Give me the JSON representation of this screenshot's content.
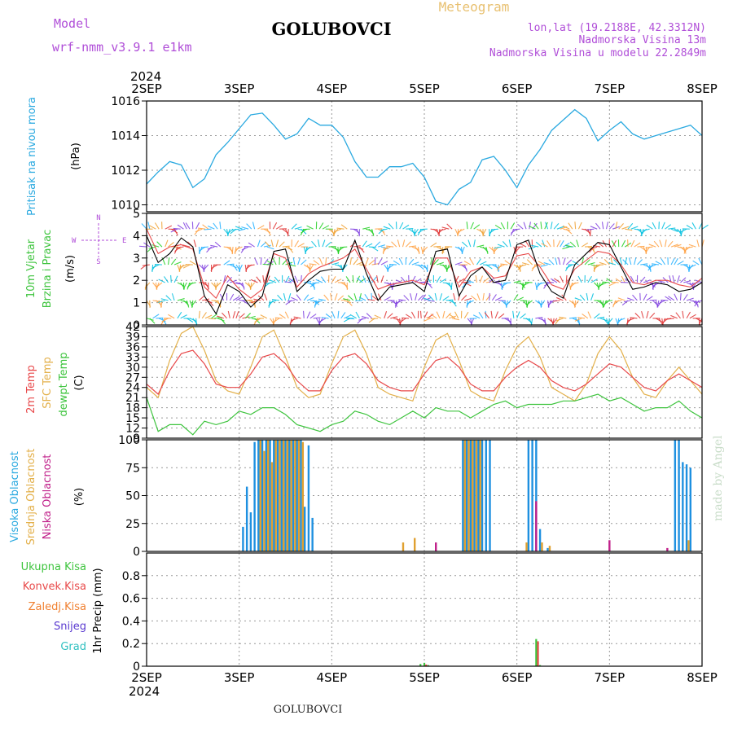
{
  "header": {
    "model_label": "Model",
    "model_name": "wrf-nmm_v3.9.1  e1km",
    "station": "GOLUBOVCI",
    "meteogram": "Meteogram",
    "lonlat": "lon,lat (19.2188E, 42.3312N)",
    "altitude": "Nadmorska Visina 13m",
    "model_altitude": "Nadmorska Visina u modelu 22.2849m",
    "footer_station": "GOLUBOVCI",
    "credit": "made by Angel"
  },
  "time_axis": {
    "year": "2024",
    "days": [
      "2SEP",
      "3SEP",
      "4SEP",
      "5SEP",
      "6SEP",
      "7SEP",
      "8SEP"
    ],
    "hours_total": 144
  },
  "colors": {
    "pressure": "#2aa9e0",
    "wind_speed": "#000000",
    "wind_gust": "#e84a4a",
    "temp_2m": "#e8484a",
    "temp_sfc": "#e3b04a",
    "dewpoint": "#3ec43e",
    "cloud_high": "#1e90e0",
    "cloud_mid": "#e0a030",
    "cloud_low": "#c0208a",
    "precip_total": "#3ec43e",
    "precip_conv": "#e84a4a",
    "precip_frz": "#f08030",
    "snow": "#5a3ad0",
    "hail": "#30c0c0",
    "label_purple": "#b04ed8",
    "label_gold": "#e8c070",
    "credit": "#c8dcc8"
  },
  "panels": {
    "pressure": {
      "title": "Pritisak na nivou mora",
      "unit": "(hPa)",
      "yticks": [
        "1010",
        "1012",
        "1014",
        "1016"
      ]
    },
    "wind": {
      "title1": "10m Vjetar",
      "title2": "Brzina i Pravac",
      "unit": "(m/s)",
      "yticks": [
        "0",
        "1",
        "2",
        "3",
        "4",
        "5"
      ],
      "compass": {
        "n": "N",
        "s": "S",
        "w": "W",
        "e": "E"
      }
    },
    "temp": {
      "title1": "2m Temp",
      "title2": "SFC Temp",
      "title3": "dewpt Temp",
      "unit": "(C)",
      "yticks": [
        "9",
        "12",
        "15",
        "18",
        "21",
        "24",
        "27",
        "30",
        "33",
        "36",
        "39",
        "42"
      ]
    },
    "cloud": {
      "title1": "Visoka Oblacnost",
      "title2": "Srednja Oblacnost",
      "title3": "Niska Oblacnost",
      "unit": "(%)",
      "yticks": [
        "0",
        "25",
        "50",
        "75",
        "100"
      ]
    },
    "precip": {
      "legend": [
        "Ukupna Kisa",
        "Konvek.Kisa",
        "Zaledj.Kisa",
        "Snijeg",
        "Grad"
      ],
      "ylabel": "1hr Precip (mm)",
      "yticks": [
        "0",
        "0.2",
        "0.4",
        "0.6",
        "0.8"
      ]
    }
  },
  "chart_data": [
    {
      "type": "line",
      "name": "pressure",
      "ylim": [
        1009.6,
        1016
      ],
      "x_hours": [
        0,
        3,
        6,
        9,
        12,
        15,
        18,
        21,
        24,
        27,
        30,
        33,
        36,
        39,
        42,
        45,
        48,
        51,
        54,
        57,
        60,
        63,
        66,
        69,
        72,
        75,
        78,
        81,
        84,
        87,
        90,
        93,
        96,
        99,
        102,
        105,
        108,
        111,
        114,
        117,
        120,
        123,
        126,
        129,
        132,
        135,
        138,
        141,
        144
      ],
      "values": [
        1011.2,
        1011.9,
        1012.5,
        1012.3,
        1011.0,
        1011.5,
        1012.9,
        1013.6,
        1014.4,
        1015.2,
        1015.3,
        1014.6,
        1013.8,
        1014.1,
        1015.0,
        1014.6,
        1014.6,
        1013.9,
        1012.5,
        1011.6,
        1011.6,
        1012.2,
        1012.2,
        1012.4,
        1011.6,
        1010.2,
        1010.0,
        1010.9,
        1011.3,
        1012.6,
        1012.8,
        1012.0,
        1011.0,
        1012.3,
        1013.2,
        1014.3,
        1014.9,
        1015.5,
        1015.0,
        1013.7,
        1014.3,
        1014.8,
        1014.1,
        1013.8,
        1014.0,
        1014.2,
        1014.4,
        1014.6,
        1014.0
      ]
    },
    {
      "type": "line",
      "name": "wind",
      "ylim": [
        0,
        5
      ],
      "x_hours": [
        0,
        3,
        6,
        9,
        12,
        15,
        18,
        21,
        24,
        27,
        30,
        33,
        36,
        39,
        42,
        45,
        48,
        51,
        54,
        57,
        60,
        63,
        66,
        69,
        72,
        75,
        78,
        81,
        84,
        87,
        90,
        93,
        96,
        99,
        102,
        105,
        108,
        111,
        114,
        117,
        120,
        123,
        126,
        129,
        132,
        135,
        138,
        141,
        144
      ],
      "series": [
        {
          "values": [
            4.0,
            2.8,
            3.2,
            3.9,
            3.5,
            1.3,
            0.5,
            1.8,
            1.5,
            0.8,
            1.3,
            3.3,
            3.4,
            1.5,
            2.0,
            2.4,
            2.5,
            2.5,
            3.8,
            2.3,
            1.1,
            1.7,
            1.8,
            1.9,
            1.5,
            3.3,
            3.4,
            1.3,
            2.2,
            2.6,
            1.9,
            2.0,
            3.6,
            3.8,
            2.3,
            1.5,
            1.2,
            2.7,
            3.2,
            3.7,
            3.6,
            2.6,
            1.6,
            1.7,
            1.9,
            1.8,
            1.5,
            1.6,
            1.9
          ]
        },
        {
          "values": [
            4.3,
            3.2,
            3.5,
            3.6,
            3.4,
            1.7,
            1.2,
            2.2,
            1.6,
            1.2,
            1.6,
            3.2,
            3.0,
            1.7,
            2.3,
            2.6,
            2.8,
            3.0,
            3.4,
            2.5,
            1.6,
            1.8,
            1.9,
            2.0,
            1.8,
            3.0,
            3.0,
            1.7,
            2.4,
            2.6,
            2.1,
            2.2,
            3.1,
            3.2,
            2.6,
            1.8,
            1.6,
            2.5,
            2.9,
            3.3,
            3.2,
            2.7,
            1.9,
            1.8,
            2.0,
            2.0,
            1.8,
            1.7,
            2.1
          ]
        }
      ]
    },
    {
      "type": "line",
      "name": "temperature",
      "ylim": [
        9,
        42
      ],
      "x_hours": [
        0,
        3,
        6,
        9,
        12,
        15,
        18,
        21,
        24,
        27,
        30,
        33,
        36,
        39,
        42,
        45,
        48,
        51,
        54,
        57,
        60,
        63,
        66,
        69,
        72,
        75,
        78,
        81,
        84,
        87,
        90,
        93,
        96,
        99,
        102,
        105,
        108,
        111,
        114,
        117,
        120,
        123,
        126,
        129,
        132,
        135,
        138,
        141,
        144
      ],
      "series": [
        {
          "values": [
            25,
            22,
            29,
            34,
            35,
            31,
            25,
            24,
            24,
            28,
            33,
            34,
            31,
            26,
            23,
            23,
            29,
            33,
            34,
            31,
            26,
            24,
            23,
            23,
            28,
            32,
            33,
            30,
            25,
            23,
            23,
            27,
            30,
            32,
            30,
            26,
            24,
            23,
            25,
            28,
            31,
            30,
            27,
            24,
            23,
            26,
            28,
            26,
            24
          ]
        },
        {
          "values": [
            24,
            21,
            32,
            40,
            42,
            35,
            26,
            23,
            22,
            30,
            39,
            41,
            33,
            24,
            21,
            22,
            31,
            39,
            41,
            34,
            24,
            22,
            21,
            20,
            30,
            38,
            40,
            32,
            23,
            21,
            20,
            29,
            36,
            39,
            33,
            24,
            22,
            20,
            25,
            34,
            39,
            35,
            27,
            22,
            21,
            26,
            30,
            26,
            22
          ]
        },
        {
          "values": [
            21,
            11,
            13,
            13,
            10,
            14,
            13,
            14,
            17,
            16,
            18,
            18,
            16,
            13,
            12,
            11,
            13,
            14,
            17,
            16,
            14,
            13,
            15,
            17,
            15,
            18,
            17,
            17,
            15,
            17,
            19,
            20,
            18,
            19,
            19,
            19,
            20,
            20,
            21,
            22,
            20,
            21,
            19,
            17,
            18,
            18,
            20,
            17,
            15
          ]
        }
      ]
    },
    {
      "type": "bar",
      "name": "cloud",
      "ylim": [
        0,
        100
      ],
      "series": [
        {
          "name": "Visoka Oblacnost",
          "bars": [
            [
              25,
              22
            ],
            [
              26,
              58
            ],
            [
              27,
              35
            ],
            [
              28,
              98
            ],
            [
              29,
              100
            ],
            [
              30,
              100
            ],
            [
              31,
              100
            ],
            [
              32,
              100
            ],
            [
              33,
              100
            ],
            [
              34,
              100
            ],
            [
              35,
              100
            ],
            [
              36,
              100
            ],
            [
              37,
              100
            ],
            [
              38,
              100
            ],
            [
              39,
              100
            ],
            [
              40,
              100
            ],
            [
              41,
              40
            ],
            [
              42,
              95
            ],
            [
              43,
              30
            ],
            [
              82,
              100
            ],
            [
              83,
              100
            ],
            [
              84,
              100
            ],
            [
              85,
              100
            ],
            [
              86,
              100
            ],
            [
              87,
              100
            ],
            [
              88,
              100
            ],
            [
              89,
              100
            ],
            [
              99,
              100
            ],
            [
              100,
              100
            ],
            [
              101,
              100
            ],
            [
              102,
              20
            ],
            [
              104,
              3
            ],
            [
              137,
              100
            ],
            [
              138,
              100
            ],
            [
              139,
              80
            ],
            [
              140,
              78
            ],
            [
              141,
              75
            ]
          ]
        },
        {
          "name": "Srednja Oblacnost",
          "bars": [
            [
              29,
              100
            ],
            [
              30,
              90
            ],
            [
              31,
              100
            ],
            [
              32,
              80
            ],
            [
              33,
              100
            ],
            [
              34,
              100
            ],
            [
              35,
              100
            ],
            [
              36,
              100
            ],
            [
              37,
              100
            ],
            [
              38,
              100
            ],
            [
              39,
              100
            ],
            [
              40,
              98
            ],
            [
              66,
              8
            ],
            [
              69,
              12
            ],
            [
              82,
              100
            ],
            [
              83,
              100
            ],
            [
              84,
              100
            ],
            [
              85,
              100
            ],
            [
              86,
              100
            ],
            [
              98,
              8
            ],
            [
              102,
              8
            ],
            [
              104,
              5
            ],
            [
              140,
              10
            ]
          ]
        },
        {
          "name": "Niska Oblacnost",
          "bars": [
            [
              75,
              8
            ],
            [
              101,
              45
            ],
            [
              120,
              10
            ],
            [
              135,
              3
            ]
          ]
        }
      ]
    },
    {
      "type": "bar",
      "name": "precip",
      "ylim": [
        0,
        1.0
      ],
      "series": [
        {
          "name": "Ukupna Kisa",
          "bars": [
            [
              71,
              0.02
            ],
            [
              72,
              0.03
            ],
            [
              73,
              0.01
            ],
            [
              101,
              0.24
            ],
            [
              102,
              0.01
            ]
          ]
        },
        {
          "name": "Konvek.Kisa",
          "bars": [
            [
              72,
              0.015
            ],
            [
              101,
              0.22
            ]
          ]
        }
      ]
    }
  ]
}
